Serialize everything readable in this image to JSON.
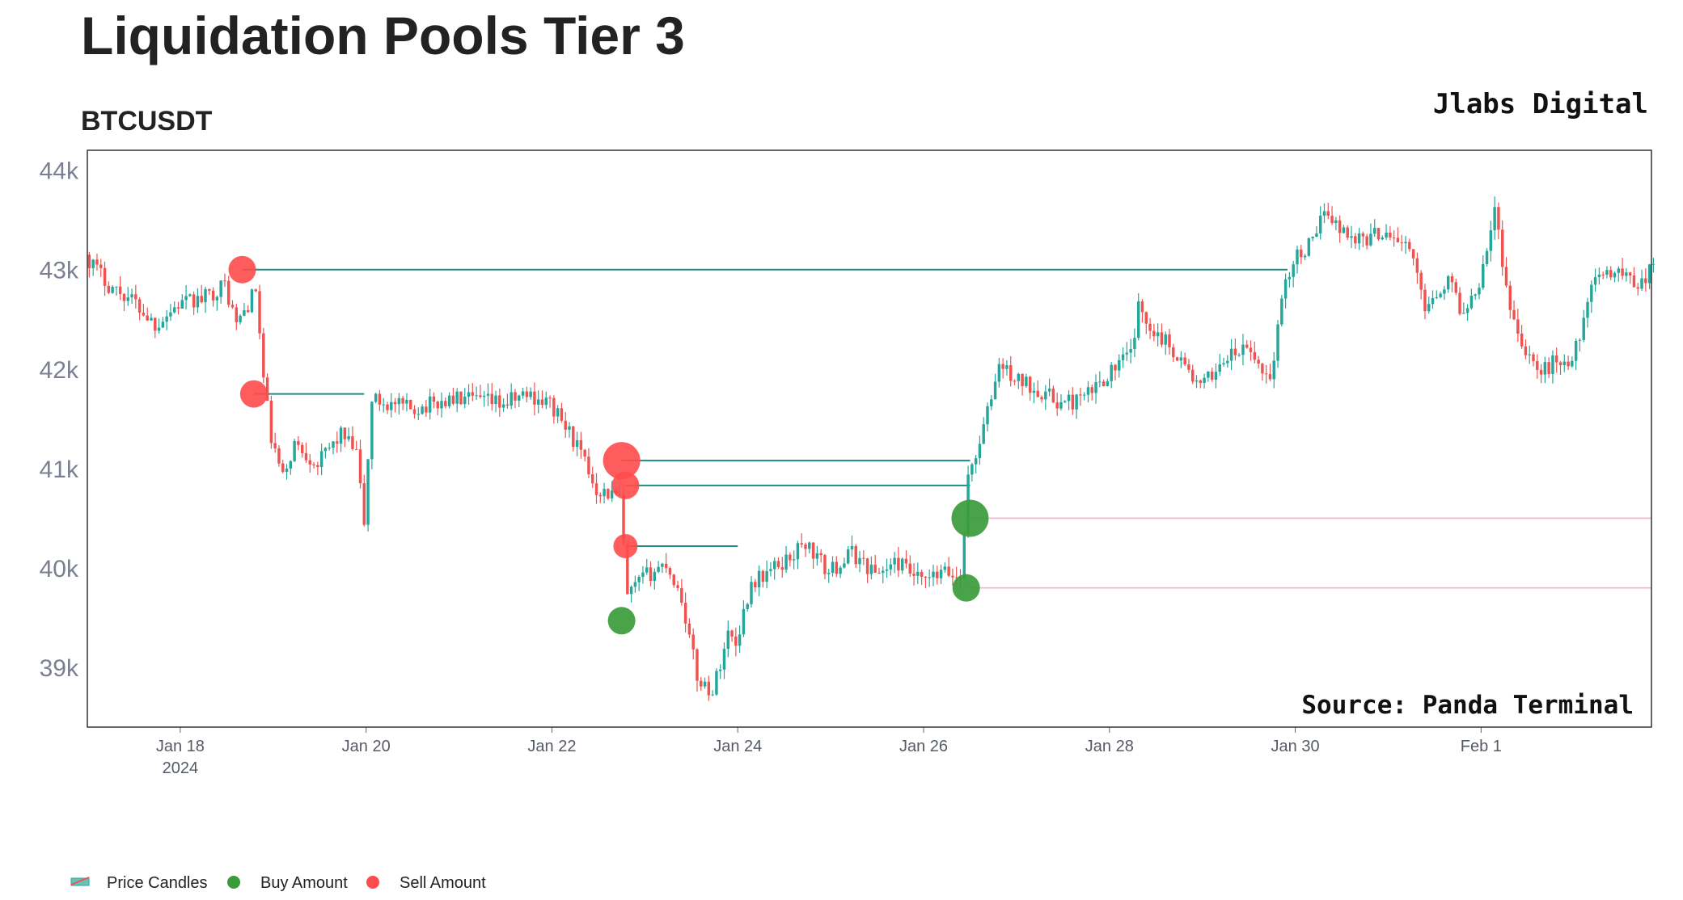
{
  "chart_data": {
    "type": "candlestick",
    "title": "Liquidation Pools Tier 3",
    "subtitle": "BTCUSDT",
    "brand": "Jlabs Digital",
    "source": "Source: Panda Terminal",
    "x_range": [
      "2024-01-17T00:00",
      "2024-02-02T20:00"
    ],
    "ylim": [
      38400,
      44200
    ],
    "y_ticks": [
      {
        "value": 39000,
        "label": "39k"
      },
      {
        "value": 40000,
        "label": "40k"
      },
      {
        "value": 41000,
        "label": "41k"
      },
      {
        "value": 42000,
        "label": "42k"
      },
      {
        "value": 43000,
        "label": "43k"
      },
      {
        "value": 44000,
        "label": "44k"
      }
    ],
    "x_ticks": [
      {
        "value": "2024-01-18",
        "label": "Jan 18",
        "sublabel": "2024"
      },
      {
        "value": "2024-01-20",
        "label": "Jan 20"
      },
      {
        "value": "2024-01-22",
        "label": "Jan 22"
      },
      {
        "value": "2024-01-24",
        "label": "Jan 24"
      },
      {
        "value": "2024-01-26",
        "label": "Jan 26"
      },
      {
        "value": "2024-01-28",
        "label": "Jan 28"
      },
      {
        "value": "2024-01-30",
        "label": "Jan 30"
      },
      {
        "value": "2024-02-01",
        "label": "Feb 1"
      }
    ],
    "price_path": [
      [
        "2024-01-17T00:00",
        43150
      ],
      [
        "2024-01-17T06:00",
        42850
      ],
      [
        "2024-01-17T12:00",
        42700
      ],
      [
        "2024-01-17T18:00",
        42450
      ],
      [
        "2024-01-18T00:00",
        42650
      ],
      [
        "2024-01-18T06:00",
        42700
      ],
      [
        "2024-01-18T12:00",
        42850
      ],
      [
        "2024-01-18T15:00",
        42450
      ],
      [
        "2024-01-18T18:00",
        42650
      ],
      [
        "2024-01-18T20:00",
        42800
      ],
      [
        "2024-01-18T22:00",
        41900
      ],
      [
        "2024-01-19T00:00",
        41300
      ],
      [
        "2024-01-19T03:00",
        40900
      ],
      [
        "2024-01-19T06:00",
        41250
      ],
      [
        "2024-01-19T12:00",
        41050
      ],
      [
        "2024-01-19T18:00",
        41350
      ],
      [
        "2024-01-19T22:00",
        41150
      ],
      [
        "2024-01-20T00:00",
        40450
      ],
      [
        "2024-01-20T02:00",
        41700
      ],
      [
        "2024-01-20T06:00",
        41650
      ],
      [
        "2024-01-20T12:00",
        41600
      ],
      [
        "2024-01-21T00:00",
        41700
      ],
      [
        "2024-01-21T12:00",
        41650
      ],
      [
        "2024-01-21T18:00",
        41750
      ],
      [
        "2024-01-22T00:00",
        41650
      ],
      [
        "2024-01-22T06:00",
        41300
      ],
      [
        "2024-01-22T12:00",
        40800
      ],
      [
        "2024-01-22T18:00",
        40700
      ],
      [
        "2024-01-22T20:00",
        39700
      ],
      [
        "2024-01-23T00:00",
        39900
      ],
      [
        "2024-01-23T06:00",
        40050
      ],
      [
        "2024-01-23T10:00",
        39700
      ],
      [
        "2024-01-23T14:00",
        38900
      ],
      [
        "2024-01-23T18:00",
        38750
      ],
      [
        "2024-01-23T22:00",
        39350
      ],
      [
        "2024-01-24T00:00",
        39250
      ],
      [
        "2024-01-24T04:00",
        39850
      ],
      [
        "2024-01-24T12:00",
        40050
      ],
      [
        "2024-01-24T18:00",
        40250
      ],
      [
        "2024-01-25T00:00",
        39950
      ],
      [
        "2024-01-25T06:00",
        40150
      ],
      [
        "2024-01-25T12:00",
        39950
      ],
      [
        "2024-01-25T18:00",
        40050
      ],
      [
        "2024-01-26T00:00",
        39850
      ],
      [
        "2024-01-26T06:00",
        39950
      ],
      [
        "2024-01-26T10:00",
        39900
      ],
      [
        "2024-01-26T12:00",
        40900
      ],
      [
        "2024-01-26T16:00",
        41400
      ],
      [
        "2024-01-26T20:00",
        42050
      ],
      [
        "2024-01-27T00:00",
        41900
      ],
      [
        "2024-01-27T06:00",
        41800
      ],
      [
        "2024-01-27T12:00",
        41650
      ],
      [
        "2024-01-27T18:00",
        41700
      ],
      [
        "2024-01-28T00:00",
        41950
      ],
      [
        "2024-01-28T06:00",
        42150
      ],
      [
        "2024-01-28T08:00",
        42600
      ],
      [
        "2024-01-28T12:00",
        42400
      ],
      [
        "2024-01-28T18:00",
        42150
      ],
      [
        "2024-01-29T00:00",
        41800
      ],
      [
        "2024-01-29T06:00",
        42100
      ],
      [
        "2024-01-29T12:00",
        42200
      ],
      [
        "2024-01-29T18:00",
        41900
      ],
      [
        "2024-01-29T22:00",
        42900
      ],
      [
        "2024-01-30T00:00",
        43100
      ],
      [
        "2024-01-30T06:00",
        43300
      ],
      [
        "2024-01-30T08:00",
        43650
      ],
      [
        "2024-01-30T12:00",
        43400
      ],
      [
        "2024-01-30T18:00",
        43300
      ],
      [
        "2024-01-31T00:00",
        43400
      ],
      [
        "2024-01-31T06:00",
        43200
      ],
      [
        "2024-01-31T10:00",
        42650
      ],
      [
        "2024-01-31T16:00",
        42900
      ],
      [
        "2024-01-31T20:00",
        42550
      ],
      [
        "2024-02-01T00:00",
        42900
      ],
      [
        "2024-02-01T04:00",
        43600
      ],
      [
        "2024-02-01T08:00",
        42600
      ],
      [
        "2024-02-01T12:00",
        42200
      ],
      [
        "2024-02-01T16:00",
        41950
      ],
      [
        "2024-02-01T20:00",
        42100
      ],
      [
        "2024-02-02T00:00",
        42050
      ],
      [
        "2024-02-02T04:00",
        42700
      ],
      [
        "2024-02-02T08:00",
        43000
      ],
      [
        "2024-02-02T14:00",
        42950
      ],
      [
        "2024-02-02T18:00",
        42850
      ],
      [
        "2024-02-02T20:00",
        43000
      ]
    ],
    "pools": [
      {
        "side": "Sell",
        "x": "2024-01-18T16:00",
        "price": 43000,
        "size": "medium",
        "end": "2024-01-29T22:00"
      },
      {
        "side": "Sell",
        "x": "2024-01-18T19:00",
        "price": 41750,
        "size": "medium",
        "end": "2024-01-19T23:30"
      },
      {
        "side": "Sell",
        "x": "2024-01-22T18:00",
        "price": 41080,
        "size": "large",
        "end": "2024-01-26T12:00"
      },
      {
        "side": "Sell",
        "x": "2024-01-22T19:00",
        "price": 40830,
        "size": "medium",
        "end": "2024-01-26T12:00"
      },
      {
        "side": "Sell",
        "x": "2024-01-22T19:00",
        "price": 40220,
        "size": "small",
        "end": "2024-01-24T00:00"
      },
      {
        "side": "Buy",
        "x": "2024-01-22T18:00",
        "price": 39470,
        "size": "medium",
        "end": null
      },
      {
        "side": "Buy",
        "x": "2024-01-26T11:00",
        "price": 39800,
        "size": "medium",
        "end": "2024-02-02T20:00"
      },
      {
        "side": "Buy",
        "x": "2024-01-26T12:00",
        "price": 40500,
        "size": "large",
        "end": "2024-02-02T20:00"
      }
    ],
    "colors": {
      "up": "#26a69a",
      "down": "#ef5350",
      "buy": "#3a9b3a",
      "sell": "#ff4b4b",
      "pool_line": "#1f8a80",
      "unfilled_line": "#f6b1c3"
    },
    "legend": {
      "placement": "bottom-left",
      "items": [
        {
          "label": "Price Candles",
          "kind": "candle"
        },
        {
          "label": "Buy Amount",
          "kind": "buy"
        },
        {
          "label": "Sell Amount",
          "kind": "sell"
        }
      ]
    }
  }
}
